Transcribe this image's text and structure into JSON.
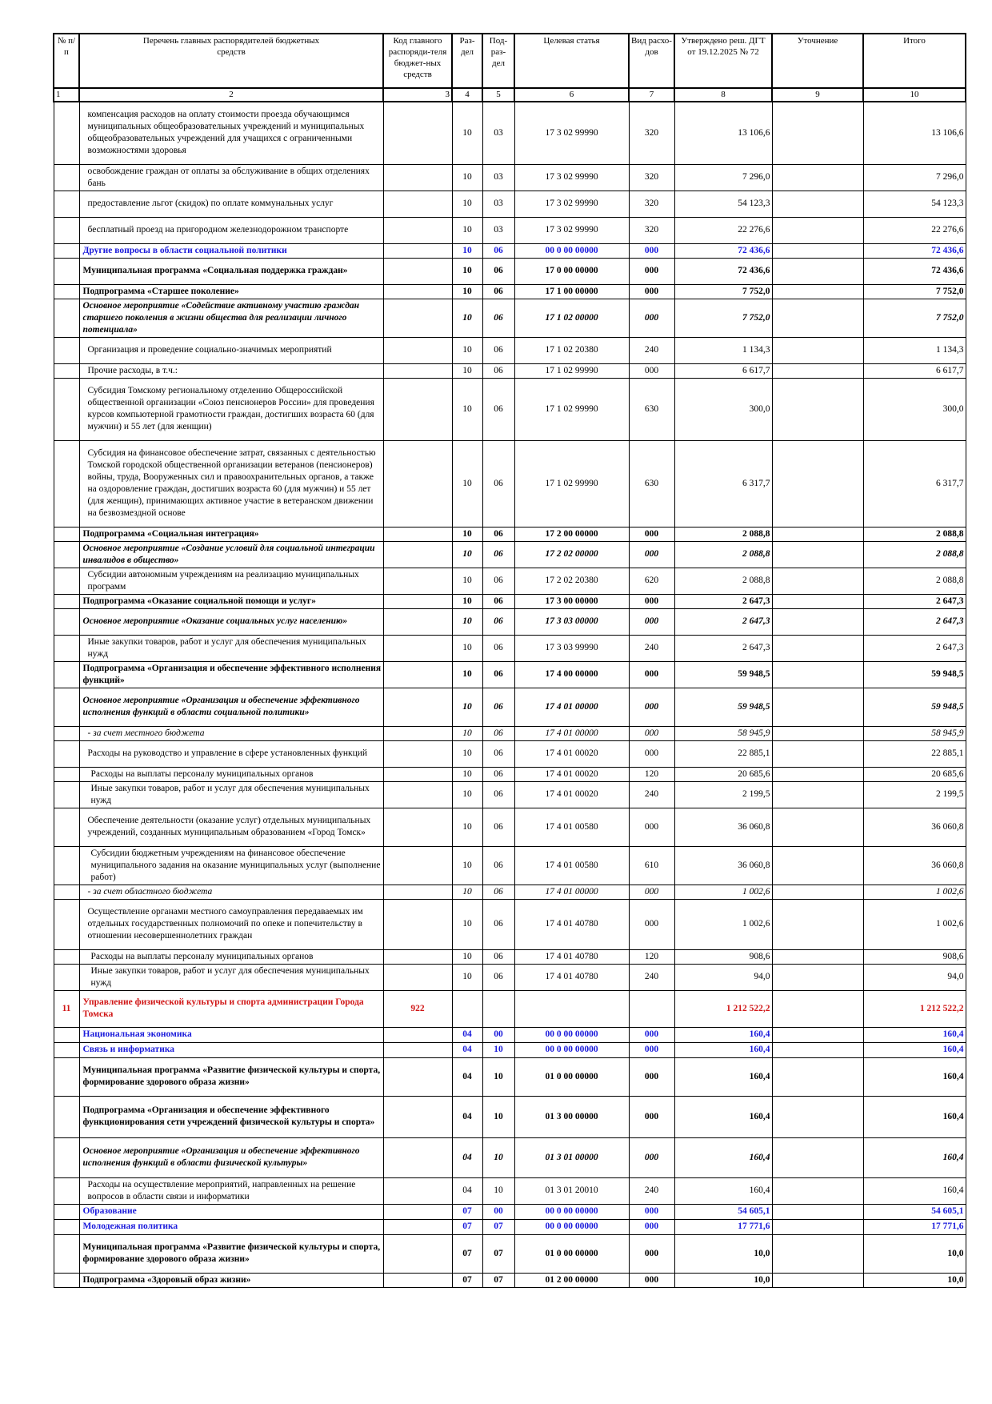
{
  "header": {
    "col1": "№ п/п",
    "col2": "Перечень главных распорядителей бюджетных средств",
    "col3": "Код главного распоряди-теля бюджет-ных средств",
    "col4": "Раз-дел",
    "col5": "Под-раз-дел",
    "col6": "Целевая статья",
    "col7": "Вид расхо-дов",
    "col8": "Утверждено реш. ДГТ от 19.12.2025 № 72",
    "col9": "Уточнение",
    "col10": "Итого"
  },
  "column_numbers": [
    "1",
    "2",
    "3",
    "4",
    "5",
    "6",
    "7",
    "8",
    "9",
    "10"
  ],
  "rows": [
    {
      "style": "norm",
      "indent": 1,
      "h": 78,
      "n": "",
      "name": "компенсация расходов на оплату стоимости проезда обучающимся муниципальных общеобразовательных учреждений и муниципальных общеобразовательных учреждений для учащихся с ограниченными возможностями здоровья",
      "code": "",
      "razdel": "10",
      "podr": "03",
      "cs": "17 3 02 99990",
      "vr": "320",
      "approved": "13 106,6",
      "change": "",
      "total": "13 106,6"
    },
    {
      "style": "norm",
      "indent": 1,
      "h": 33,
      "n": "",
      "name": "освобождение граждан от оплаты за обслуживание в общих отделениях бань",
      "code": "",
      "razdel": "10",
      "podr": "03",
      "cs": "17 3 02 99990",
      "vr": "320",
      "approved": "7 296,0",
      "change": "",
      "total": "7 296,0"
    },
    {
      "style": "norm",
      "indent": 1,
      "h": 33,
      "n": "",
      "name": "предоставление льгот (скидок) по оплате коммунальных услуг",
      "code": "",
      "razdel": "10",
      "podr": "03",
      "cs": "17 3 02 99990",
      "vr": "320",
      "approved": "54 123,3",
      "change": "",
      "total": "54 123,3"
    },
    {
      "style": "norm",
      "indent": 1,
      "h": 33,
      "n": "",
      "name": "бесплатный проезд на пригородном железнодорожном транспорте",
      "code": "",
      "razdel": "10",
      "podr": "03",
      "cs": "17 3 02 99990",
      "vr": "320",
      "approved": "22 276,6",
      "change": "",
      "total": "22 276,6"
    },
    {
      "style": "blue",
      "indent": 0,
      "h": 17,
      "n": "",
      "name": "Другие вопросы в области социальной политики",
      "code": "",
      "razdel": "10",
      "podr": "06",
      "cs": "00 0 00 00000",
      "vr": "000",
      "approved": "72 436,6",
      "change": "",
      "total": "72 436,6"
    },
    {
      "style": "b",
      "indent": 0,
      "h": 33,
      "n": "",
      "name": "Муниципальная программа «Социальная поддержка граждан»",
      "code": "",
      "razdel": "10",
      "podr": "06",
      "cs": "17 0 00 00000",
      "vr": "000",
      "approved": "72 436,6",
      "change": "",
      "total": "72 436,6"
    },
    {
      "style": "b",
      "indent": 0,
      "h": 17,
      "n": "",
      "name": "Подпрограмма «Старшее поколение»",
      "code": "",
      "razdel": "10",
      "podr": "06",
      "cs": "17 1 00 00000",
      "vr": "000",
      "approved": "7 752,0",
      "change": "",
      "total": "7 752,0"
    },
    {
      "style": "bi",
      "indent": 0,
      "h": 48,
      "n": "",
      "name": "Основное мероприятие «Содействие активному участию граждан старшего поколения в жизни общества для реализации личного потенциала»",
      "code": "",
      "razdel": "10",
      "podr": "06",
      "cs": "17 1 02 00000",
      "vr": "000",
      "approved": "7 752,0",
      "change": "",
      "total": "7 752,0"
    },
    {
      "style": "norm",
      "indent": 1,
      "h": 33,
      "n": "",
      "name": "Организация и проведение социально-значимых мероприятий",
      "code": "",
      "razdel": "10",
      "podr": "06",
      "cs": "17 1 02 20380",
      "vr": "240",
      "approved": "1 134,3",
      "change": "",
      "total": "1 134,3"
    },
    {
      "style": "norm",
      "indent": 1,
      "h": 17,
      "n": "",
      "name": "Прочие расходы, в т.ч.:",
      "code": "",
      "razdel": "10",
      "podr": "06",
      "cs": "17 1 02 99990",
      "vr": "000",
      "approved": "6 617,7",
      "change": "",
      "total": "6 617,7"
    },
    {
      "style": "norm",
      "indent": 1,
      "h": 78,
      "n": "",
      "name": "Субсидия Томскому региональному отделению Общероссийской общественной организации «Союз пенсионеров России» для проведения курсов компьютерной грамотности граждан, достигших возраста 60 (для мужчин) и 55 лет (для женщин)",
      "code": "",
      "razdel": "10",
      "podr": "06",
      "cs": "17 1 02 99990",
      "vr": "630",
      "approved": "300,0",
      "change": "",
      "total": "300,0"
    },
    {
      "style": "norm",
      "indent": 1,
      "h": 108,
      "n": "",
      "name": "Субсидия на финансовое обеспечение затрат, связанных с деятельностью Томской городской общественной организации ветеранов (пенсионеров) войны, труда, Вооруженных сил и правоохранительных органов, а также на оздоровление граждан, достигших возраста 60 (для мужчин) и 55 лет (для женщин), принимающих активное участие в ветеранском движении на безвозмездной основе",
      "code": "",
      "razdel": "10",
      "podr": "06",
      "cs": "17 1 02 99990",
      "vr": "630",
      "approved": "6 317,7",
      "change": "",
      "total": "6 317,7"
    },
    {
      "style": "b",
      "indent": 0,
      "h": 17,
      "n": "",
      "name": "Подпрограмма «Социальная интеграция»",
      "code": "",
      "razdel": "10",
      "podr": "06",
      "cs": "17 2 00 00000",
      "vr": "000",
      "approved": "2 088,8",
      "change": "",
      "total": "2 088,8"
    },
    {
      "style": "bi",
      "indent": 0,
      "h": 33,
      "n": "",
      "name": "Основное мероприятие «Создание условий для социальной интеграции инвалидов в общество»",
      "code": "",
      "razdel": "10",
      "podr": "06",
      "cs": "17 2 02 00000",
      "vr": "000",
      "approved": "2 088,8",
      "change": "",
      "total": "2 088,8"
    },
    {
      "style": "norm",
      "indent": 1,
      "h": 33,
      "n": "",
      "name": "Субсидии автономным учреждениям на реализацию муниципальных программ",
      "code": "",
      "razdel": "10",
      "podr": "06",
      "cs": "17 2 02 20380",
      "vr": "620",
      "approved": "2 088,8",
      "change": "",
      "total": "2 088,8"
    },
    {
      "style": "b",
      "indent": 0,
      "h": 17,
      "n": "",
      "name": "Подпрограмма «Оказание социальной помощи и услуг»",
      "code": "",
      "razdel": "10",
      "podr": "06",
      "cs": "17 3 00 00000",
      "vr": "000",
      "approved": "2 647,3",
      "change": "",
      "total": "2 647,3"
    },
    {
      "style": "bi",
      "indent": 0,
      "h": 33,
      "n": "",
      "name": "Основное мероприятие «Оказание социальных услуг населению»",
      "code": "",
      "razdel": "10",
      "podr": "06",
      "cs": "17 3 03 00000",
      "vr": "000",
      "approved": "2 647,3",
      "change": "",
      "total": "2 647,3"
    },
    {
      "style": "norm",
      "indent": 1,
      "h": 33,
      "n": "",
      "name": "Иные закупки товаров, работ и услуг для обеспечения муниципальных нужд",
      "code": "",
      "razdel": "10",
      "podr": "06",
      "cs": "17 3 03 99990",
      "vr": "240",
      "approved": "2 647,3",
      "change": "",
      "total": "2 647,3"
    },
    {
      "style": "b",
      "indent": 0,
      "h": 33,
      "n": "",
      "name": "Подпрограмма «Организация и обеспечение эффективного исполнения функций»",
      "code": "",
      "razdel": "10",
      "podr": "06",
      "cs": "17 4 00 00000",
      "vr": "000",
      "approved": "59 948,5",
      "change": "",
      "total": "59 948,5"
    },
    {
      "style": "bi",
      "indent": 0,
      "h": 48,
      "n": "",
      "name": "Основное мероприятие «Организация и обеспечение эффективного исполнения функций в области социальной политики»",
      "code": "",
      "razdel": "10",
      "podr": "06",
      "cs": "17 4 01 00000",
      "vr": "000",
      "approved": "59 948,5",
      "change": "",
      "total": "59 948,5"
    },
    {
      "style": "i",
      "indent": 1,
      "h": 17,
      "n": "",
      "name": "- за счет местного бюджета",
      "code": "",
      "razdel": "10",
      "podr": "06",
      "cs": "17 4 01 00000",
      "vr": "000",
      "approved": "58 945,9",
      "change": "",
      "total": "58 945,9"
    },
    {
      "style": "norm",
      "indent": 1,
      "h": 33,
      "n": "",
      "name": "Расходы на руководство и управление в сфере установленных функций",
      "code": "",
      "razdel": "10",
      "podr": "06",
      "cs": "17 4 01 00020",
      "vr": "000",
      "approved": "22 885,1",
      "change": "",
      "total": "22 885,1"
    },
    {
      "style": "norm",
      "indent": 2,
      "h": 17,
      "n": "",
      "name": "Расходы на выплаты персоналу муниципальных органов",
      "code": "",
      "razdel": "10",
      "podr": "06",
      "cs": "17 4 01 00020",
      "vr": "120",
      "approved": "20 685,6",
      "change": "",
      "total": "20 685,6"
    },
    {
      "style": "norm",
      "indent": 2,
      "h": 33,
      "n": "",
      "name": "Иные закупки товаров, работ и услуг для обеспечения муниципальных нужд",
      "code": "",
      "razdel": "10",
      "podr": "06",
      "cs": "17 4 01 00020",
      "vr": "240",
      "approved": "2 199,5",
      "change": "",
      "total": "2 199,5"
    },
    {
      "style": "norm",
      "indent": 1,
      "h": 48,
      "n": "",
      "name": "Обеспечение деятельности (оказание услуг) отдельных муниципальных учреждений, созданных муниципальным образованием «Город Томск»",
      "code": "",
      "razdel": "10",
      "podr": "06",
      "cs": "17 4 01 00580",
      "vr": "000",
      "approved": "36 060,8",
      "change": "",
      "total": "36 060,8"
    },
    {
      "style": "norm",
      "indent": 2,
      "h": 48,
      "n": "",
      "name": "Субсидии бюджетным учреждениям на финансовое обеспечение муниципального задания на оказание муниципальных услуг (выполнение работ)",
      "code": "",
      "razdel": "10",
      "podr": "06",
      "cs": "17 4 01 00580",
      "vr": "610",
      "approved": "36 060,8",
      "change": "",
      "total": "36 060,8"
    },
    {
      "style": "i",
      "indent": 1,
      "h": 17,
      "n": "",
      "name": "- за счет областного бюджета",
      "code": "",
      "razdel": "10",
      "podr": "06",
      "cs": "17 4 01 00000",
      "vr": "000",
      "approved": "1 002,6",
      "change": "",
      "total": "1 002,6"
    },
    {
      "style": "norm",
      "indent": 1,
      "h": 63,
      "n": "",
      "name": "Осуществление органами местного самоуправления передаваемых им отдельных государственных полномочий по опеке и попечительству в отношении несовершеннолетних граждан",
      "code": "",
      "razdel": "10",
      "podr": "06",
      "cs": "17 4 01 40780",
      "vr": "000",
      "approved": "1 002,6",
      "change": "",
      "total": "1 002,6"
    },
    {
      "style": "norm",
      "indent": 2,
      "h": 17,
      "n": "",
      "name": "Расходы на выплаты персоналу муниципальных органов",
      "code": "",
      "razdel": "10",
      "podr": "06",
      "cs": "17 4 01 40780",
      "vr": "120",
      "approved": "908,6",
      "change": "",
      "total": "908,6"
    },
    {
      "style": "norm",
      "indent": 2,
      "h": 33,
      "n": "",
      "name": "Иные закупки товаров, работ и услуг для обеспечения муниципальных нужд",
      "code": "",
      "razdel": "10",
      "podr": "06",
      "cs": "17 4 01 40780",
      "vr": "240",
      "approved": "94,0",
      "change": "",
      "total": "94,0"
    },
    {
      "style": "red",
      "indent": 0,
      "h": 46,
      "n": "11",
      "name": "Управление физической культуры и спорта администрации Города Томска",
      "code": "922",
      "razdel": "",
      "podr": "",
      "cs": "",
      "vr": "",
      "approved": "1 212 522,2",
      "change": "",
      "total": "1 212 522,2"
    },
    {
      "style": "bluebig",
      "indent": 0,
      "h": 19,
      "n": "",
      "name": "Национальная экономика",
      "code": "",
      "razdel": "04",
      "podr": "00",
      "cs": "00 0 00 00000",
      "vr": "000",
      "approved": "160,4",
      "change": "",
      "total": "160,4"
    },
    {
      "style": "blue",
      "indent": 0,
      "h": 19,
      "n": "",
      "name": "Связь и информатика",
      "code": "",
      "razdel": "04",
      "podr": "10",
      "cs": "00 0 00 00000",
      "vr": "000",
      "approved": "160,4",
      "change": "",
      "total": "160,4"
    },
    {
      "style": "b",
      "indent": 0,
      "h": 48,
      "n": "",
      "name": "Муниципальная программа «Развитие физической культуры и спорта, формирование здорового образа жизни»",
      "code": "",
      "razdel": "04",
      "podr": "10",
      "cs": "01 0 00 00000",
      "vr": "000",
      "approved": "160,4",
      "change": "",
      "total": "160,4"
    },
    {
      "style": "b",
      "indent": 0,
      "h": 52,
      "n": "",
      "name": "Подпрограмма «Организация и обеспечение эффективного функционирования сети учреждений физической культуры и спорта»",
      "code": "",
      "razdel": "04",
      "podr": "10",
      "cs": "01 3 00 00000",
      "vr": "000",
      "approved": "160,4",
      "change": "",
      "total": "160,4"
    },
    {
      "style": "bi",
      "indent": 0,
      "h": 50,
      "n": "",
      "name": "Основное мероприятие «Организация и обеспечение эффективного исполнения функций в области физической культуры»",
      "code": "",
      "razdel": "04",
      "podr": "10",
      "cs": "01 3 01 00000",
      "vr": "000",
      "approved": "160,4",
      "change": "",
      "total": "160,4"
    },
    {
      "style": "norm",
      "indent": 1,
      "h": 33,
      "n": "",
      "name": "Расходы на осуществление мероприятий, направленных на решение вопросов в области связи и информатики",
      "code": "",
      "razdel": "04",
      "podr": "10",
      "cs": "01 3 01 20010",
      "vr": "240",
      "approved": "160,4",
      "change": "",
      "total": "160,4"
    },
    {
      "style": "bluebig",
      "indent": 0,
      "h": 19,
      "n": "",
      "name": "Образование",
      "code": "",
      "razdel": "07",
      "podr": "00",
      "cs": "00 0 00 00000",
      "vr": "000",
      "approved": "54 605,1",
      "change": "",
      "total": "54 605,1"
    },
    {
      "style": "blue",
      "indent": 0,
      "h": 19,
      "n": "",
      "name": "Молодежная политика",
      "code": "",
      "razdel": "07",
      "podr": "07",
      "cs": "00 0 00 00000",
      "vr": "000",
      "approved": "17 771,6",
      "change": "",
      "total": "17 771,6"
    },
    {
      "style": "b",
      "indent": 0,
      "h": 48,
      "n": "",
      "name": "Муниципальная программа «Развитие физической культуры и спорта, формирование здорового образа жизни»",
      "code": "",
      "razdel": "07",
      "podr": "07",
      "cs": "01 0 00 00000",
      "vr": "000",
      "approved": "10,0",
      "change": "",
      "total": "10,0"
    },
    {
      "style": "b",
      "indent": 0,
      "h": 17,
      "n": "",
      "name": "Подпрограмма «Здоровый образ жизни»",
      "code": "",
      "razdel": "07",
      "podr": "07",
      "cs": "01 2 00 00000",
      "vr": "000",
      "approved": "10,0",
      "change": "",
      "total": "10,0"
    }
  ]
}
